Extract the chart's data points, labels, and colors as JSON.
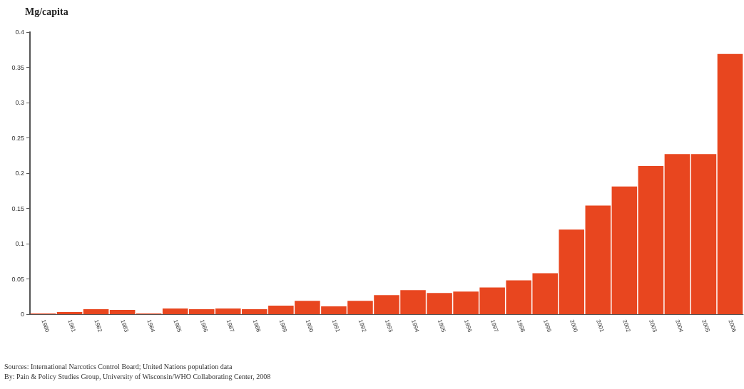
{
  "chart_data": {
    "type": "bar",
    "ylabel": "Mg/capita",
    "categories": [
      "1980",
      "1981",
      "1982",
      "1983",
      "1984",
      "1985",
      "1986",
      "1987",
      "1988",
      "1989",
      "1990",
      "1991",
      "1992",
      "1993",
      "1994",
      "1995",
      "1996",
      "1997",
      "1998",
      "1999",
      "2000",
      "2001",
      "2002",
      "2003",
      "2004",
      "2005",
      "2006"
    ],
    "values": [
      0.001,
      0.003,
      0.007,
      0.006,
      0.001,
      0.008,
      0.007,
      0.008,
      0.007,
      0.012,
      0.019,
      0.011,
      0.019,
      0.027,
      0.034,
      0.03,
      0.032,
      0.038,
      0.048,
      0.058,
      0.12,
      0.154,
      0.181,
      0.21,
      0.227,
      0.227,
      0.369
    ],
    "color": "#e8461f",
    "ylim": [
      0,
      0.4
    ],
    "yticks": [
      0,
      0.05,
      0.1,
      0.15,
      0.2,
      0.25,
      0.3,
      0.35,
      0.4
    ],
    "grid": false,
    "annotations": [
      "Sources:  International Narcotics Control Board; United Nations population data",
      "By:  Pain & Policy Studies Group, University of Wisconsin/WHO Collaborating Center, 2008"
    ]
  }
}
